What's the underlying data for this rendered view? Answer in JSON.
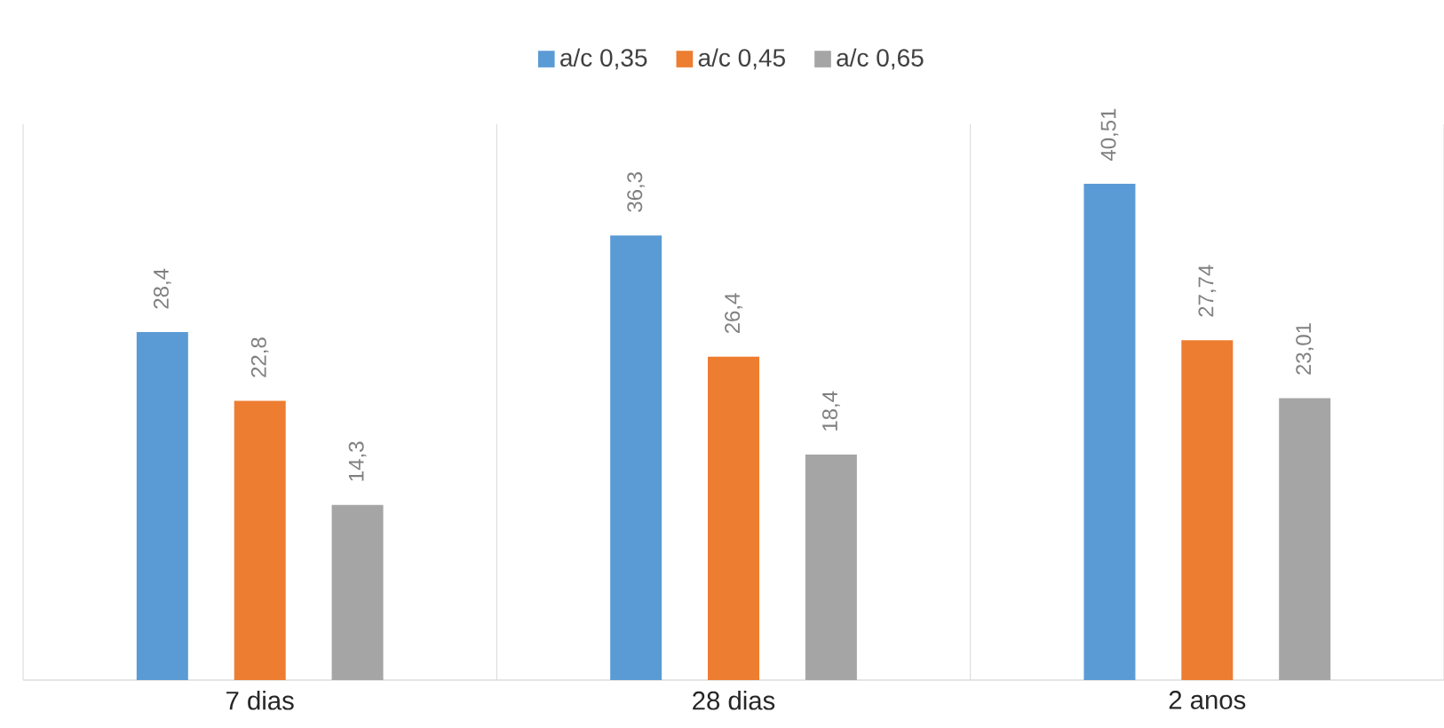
{
  "chart_data": {
    "type": "bar",
    "categories": [
      "7 dias",
      "28 dias",
      "2 anos"
    ],
    "series": [
      {
        "name": "a/c 0,35",
        "color": "#5b9bd5",
        "values": [
          28.4,
          36.3,
          40.51
        ],
        "value_labels": [
          "28,4",
          "36,3",
          "40,51"
        ]
      },
      {
        "name": "a/c 0,45",
        "color": "#ed7d31",
        "values": [
          22.8,
          26.4,
          27.74
        ],
        "value_labels": [
          "22,8",
          "26,4",
          "27,74"
        ]
      },
      {
        "name": "a/c 0,65",
        "color": "#a5a5a5",
        "values": [
          14.3,
          18.4,
          23.01
        ],
        "value_labels": [
          "14,3",
          "18,4",
          "23,01"
        ]
      }
    ],
    "legend": "top"
  }
}
